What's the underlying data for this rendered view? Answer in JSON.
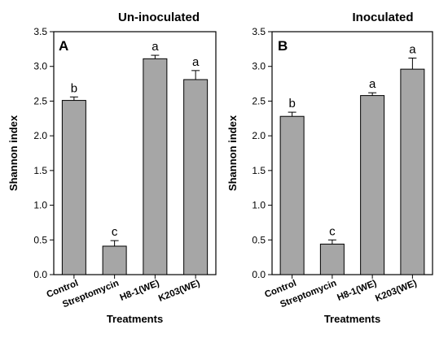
{
  "chart_data": [
    {
      "type": "bar",
      "panel": "A",
      "title": "Un-inoculated",
      "xlabel": "Treatments",
      "ylabel": "Shannon index",
      "ylim": [
        0,
        3.5
      ],
      "yticks": [
        "0.0",
        "0.5",
        "1.0",
        "1.5",
        "2.0",
        "2.5",
        "3.0",
        "3.5"
      ],
      "categories": [
        "Control",
        "Streptomycin",
        "H8-1(WE)",
        "K203(WE)"
      ],
      "values": [
        2.51,
        0.41,
        3.11,
        2.81
      ],
      "errors": [
        0.05,
        0.08,
        0.05,
        0.13
      ],
      "significance": [
        "b",
        "c",
        "a",
        "a"
      ],
      "bar_color": "#a6a6a6",
      "grid": false
    },
    {
      "type": "bar",
      "panel": "B",
      "title": "Inoculated",
      "xlabel": "Treatments",
      "ylabel": "Shannon index",
      "ylim": [
        0,
        3.5
      ],
      "yticks": [
        "0.0",
        "0.5",
        "1.0",
        "1.5",
        "2.0",
        "2.5",
        "3.0",
        "3.5"
      ],
      "categories": [
        "Control",
        "Streptomycin",
        "H8-1(WE)",
        "K203(WE)"
      ],
      "values": [
        2.28,
        0.44,
        2.58,
        2.96
      ],
      "errors": [
        0.06,
        0.06,
        0.04,
        0.16
      ],
      "significance": [
        "b",
        "c",
        "a",
        "a"
      ],
      "bar_color": "#a6a6a6",
      "grid": false
    }
  ]
}
